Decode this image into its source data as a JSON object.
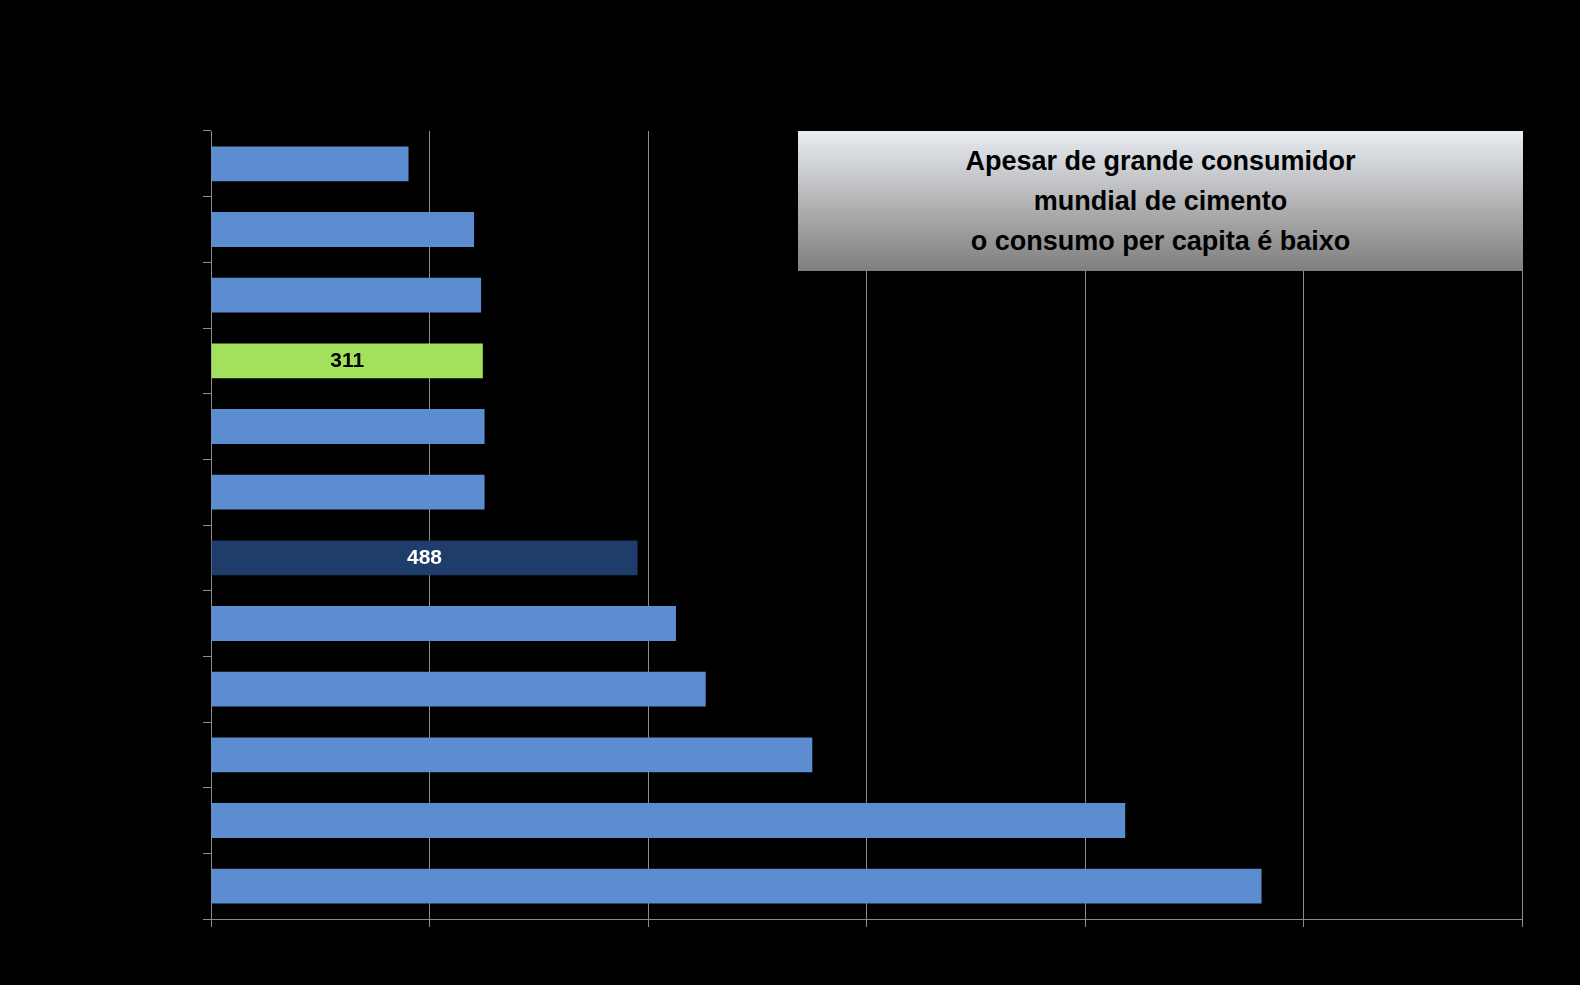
{
  "chart_data": {
    "type": "bar",
    "orientation": "horizontal",
    "categories": [
      null,
      null,
      null,
      null,
      null,
      null,
      null,
      null,
      null,
      null,
      null,
      null
    ],
    "values": [
      226,
      301,
      309,
      311,
      313,
      313,
      488,
      532,
      566,
      688,
      1046,
      1202
    ],
    "value_labels": [
      null,
      null,
      null,
      "311",
      null,
      null,
      "488",
      null,
      null,
      null,
      null,
      null
    ],
    "colors": [
      "#5b8dd0",
      "#5b8dd0",
      "#5b8dd0",
      "#a3e05c",
      "#5b8dd0",
      "#5b8dd0",
      "#1f3d6b",
      "#5b8dd0",
      "#5b8dd0",
      "#5b8dd0",
      "#5b8dd0",
      "#5b8dd0"
    ],
    "xlim": [
      0,
      1500
    ],
    "xticks": [
      0,
      250,
      500,
      750,
      1000,
      1250,
      1500
    ],
    "grid": true,
    "tick_labels": false,
    "annotation": [
      "Apesar de grande consumidor",
      "mundial de cimento",
      "o consumo per capita é baixo"
    ]
  }
}
